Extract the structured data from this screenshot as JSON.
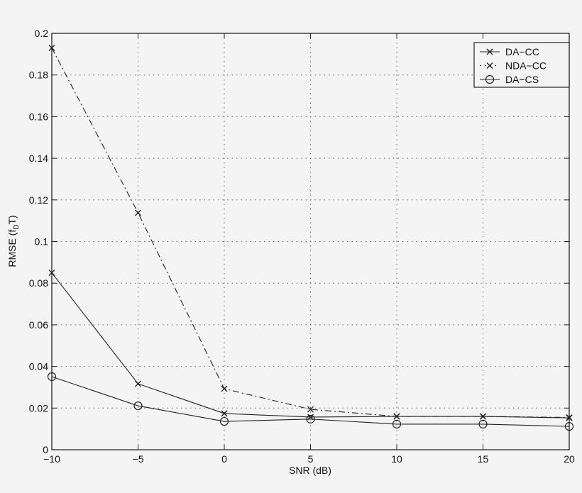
{
  "chart_data": {
    "type": "line",
    "title": "",
    "xlabel": "SNR (dB)",
    "ylabel_main": "RMSE (f",
    "ylabel_sub": "D",
    "ylabel_end": "T)",
    "x": [
      -10,
      -5,
      0,
      5,
      10,
      15,
      20
    ],
    "xlim": [
      -10,
      20
    ],
    "ylim": [
      0,
      0.2
    ],
    "xticks": [
      "−10",
      "−5",
      "0",
      "5",
      "10",
      "15",
      "20"
    ],
    "xtick_values": [
      -10,
      -5,
      0,
      5,
      10,
      15,
      20
    ],
    "yticks": [
      "0",
      "0.02",
      "0.04",
      "0.06",
      "0.08",
      "0.1",
      "0.12",
      "0.14",
      "0.16",
      "0.18",
      "0.2"
    ],
    "ytick_values": [
      0,
      0.02,
      0.04,
      0.06,
      0.08,
      0.1,
      0.12,
      0.14,
      0.16,
      0.18,
      0.2
    ],
    "grid": true,
    "legend_position": "top-right",
    "series": [
      {
        "name": "DA−CC",
        "line": "solid",
        "marker": "x",
        "values": [
          0.085,
          0.0317,
          0.0174,
          0.0157,
          0.016,
          0.016,
          0.0153
        ]
      },
      {
        "name": "NDA−CC",
        "line": "dash-dot",
        "marker": "x",
        "values": [
          0.193,
          0.1138,
          0.0293,
          0.0194,
          0.016,
          0.016,
          0.0155
        ]
      },
      {
        "name": "DA−CS",
        "line": "solid",
        "marker": "o",
        "values": [
          0.0351,
          0.0211,
          0.0136,
          0.0147,
          0.0123,
          0.0123,
          0.0112
        ]
      }
    ],
    "colors": {
      "line": "#222222",
      "background": "#f4f4f4",
      "grid": "#555555"
    }
  }
}
